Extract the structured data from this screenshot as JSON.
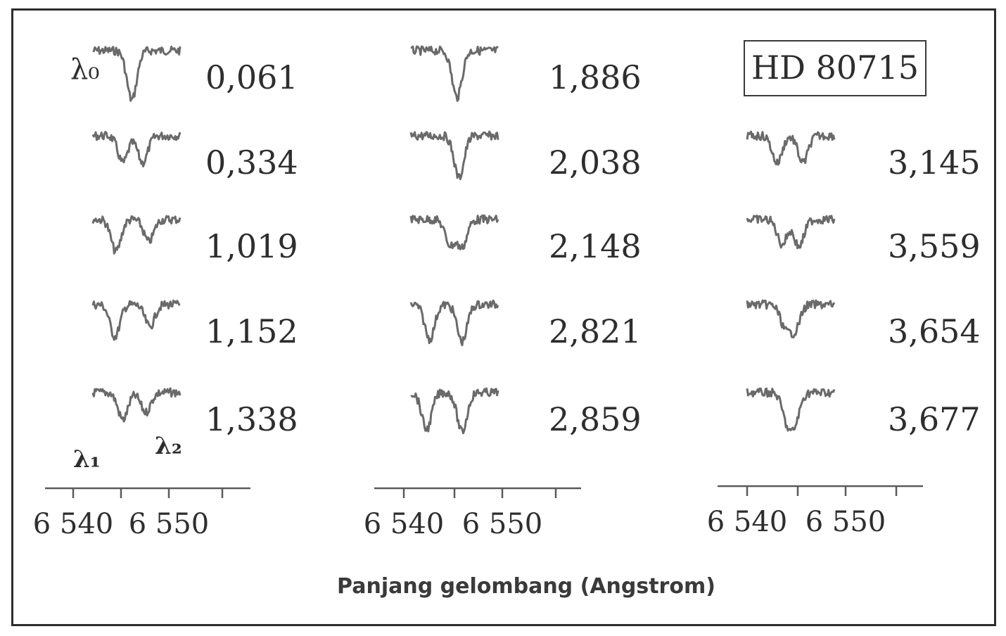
{
  "chart_data": {
    "type": "line",
    "star": "HD 80715",
    "xlabel": "Panjang gelombang (Angstrom)",
    "xlim": [
      6537,
      6558
    ],
    "x_ticks": [
      6540,
      6545,
      6550,
      6555
    ],
    "x_tick_labels": [
      "6 540",
      "6 550"
    ],
    "markers": {
      "lambda0": "λ₀",
      "lambda1": "λ₁",
      "lambda2": "λ₂"
    },
    "panels": [
      {
        "spectra": [
          {
            "label": "0,061",
            "lines": [
              {
                "center": 6545.9,
                "depth": 1.0
              }
            ]
          },
          {
            "label": "0,334",
            "lines": [
              {
                "center": 6545.0,
                "depth": 0.55
              },
              {
                "center": 6547.0,
                "depth": 0.55
              }
            ]
          },
          {
            "label": "1,019",
            "lines": [
              {
                "center": 6544.3,
                "depth": 0.65
              },
              {
                "center": 6547.6,
                "depth": 0.45
              }
            ]
          },
          {
            "label": "1,152",
            "lines": [
              {
                "center": 6544.2,
                "depth": 0.65
              },
              {
                "center": 6547.7,
                "depth": 0.45
              }
            ]
          },
          {
            "label": "1,338",
            "lines": [
              {
                "center": 6545.0,
                "depth": 0.55
              },
              {
                "center": 6547.3,
                "depth": 0.4
              }
            ]
          }
        ]
      },
      {
        "spectra": [
          {
            "label": "1,886",
            "lines": [
              {
                "center": 6546.5,
                "depth": 0.95
              }
            ]
          },
          {
            "label": "2,038",
            "lines": [
              {
                "center": 6546.7,
                "depth": 0.85
              }
            ]
          },
          {
            "label": "2,148",
            "lines": [
              {
                "center": 6545.8,
                "depth": 0.5
              },
              {
                "center": 6547.0,
                "depth": 0.55
              }
            ]
          },
          {
            "label": "2,821",
            "lines": [
              {
                "center": 6543.8,
                "depth": 0.7
              },
              {
                "center": 6547.0,
                "depth": 0.75
              }
            ]
          },
          {
            "label": "2,859",
            "lines": [
              {
                "center": 6543.5,
                "depth": 0.75
              },
              {
                "center": 6547.0,
                "depth": 0.8
              }
            ]
          }
        ]
      },
      {
        "star_box": true,
        "spectra": [
          {
            "label": "3,145",
            "lines": [
              {
                "center": 6545.0,
                "depth": 0.55
              },
              {
                "center": 6547.6,
                "depth": 0.55
              }
            ]
          },
          {
            "label": "3,559",
            "lines": [
              {
                "center": 6545.5,
                "depth": 0.5
              },
              {
                "center": 6547.2,
                "depth": 0.55
              }
            ]
          },
          {
            "label": "3,654",
            "lines": [
              {
                "center": 6545.8,
                "depth": 0.45
              },
              {
                "center": 6546.8,
                "depth": 0.5
              }
            ]
          },
          {
            "label": "3,677",
            "lines": [
              {
                "center": 6546.0,
                "depth": 0.55
              },
              {
                "center": 6546.8,
                "depth": 0.55
              }
            ]
          }
        ]
      }
    ]
  }
}
